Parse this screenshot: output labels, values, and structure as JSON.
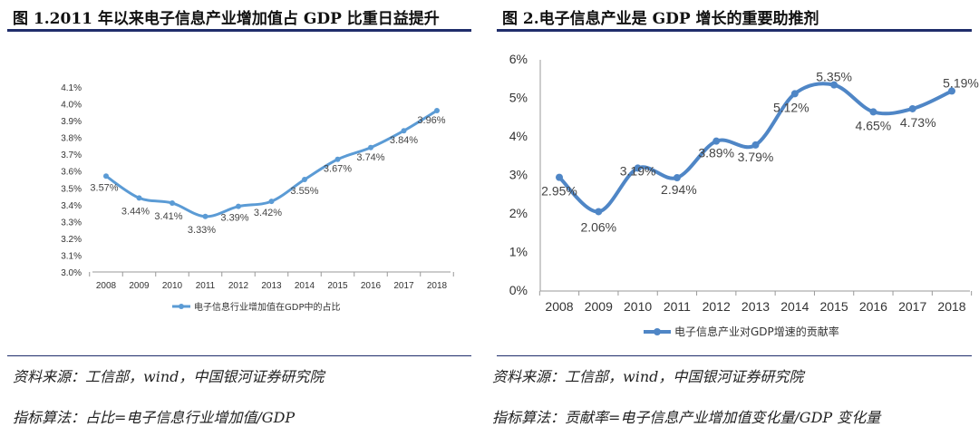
{
  "titles": {
    "left": "图 1.2011 年以来电子信息产业增加值占 GDP 比重日益提升",
    "right": "图 2.电子信息产业是 GDP 增长的重要助推剂"
  },
  "sources": {
    "left_source": "资料来源：工信部，wind，中国银河证券研究院",
    "left_formula": "指标算法：占比=电子信息行业增加值/GDP",
    "right_source": "资料来源：工信部，wind，中国银河证券研究院",
    "right_formula": "指标算法：贡献率=电子信息产业增加值变化量/GDP 变化量"
  },
  "chart_data": [
    {
      "type": "line",
      "categories": [
        "2008",
        "2009",
        "2010",
        "2011",
        "2012",
        "2013",
        "2014",
        "2015",
        "2016",
        "2017",
        "2018"
      ],
      "series": [
        {
          "name": "电子信息行业增加值在GDP中的占比",
          "values": [
            3.57,
            3.44,
            3.41,
            3.33,
            3.39,
            3.42,
            3.55,
            3.67,
            3.74,
            3.84,
            3.96
          ],
          "labels": [
            "3.57%",
            "3.44%",
            "3.41%",
            "3.33%",
            "3.39%",
            "3.42%",
            "3.55%",
            "3.67%",
            "3.74%",
            "3.84%",
            "3.96%"
          ]
        }
      ],
      "yticks": [
        "3.0%",
        "3.1%",
        "3.2%",
        "3.3%",
        "3.4%",
        "3.5%",
        "3.6%",
        "3.7%",
        "3.8%",
        "3.9%",
        "4.0%",
        "4.1%"
      ],
      "ylim": [
        3.0,
        4.1
      ],
      "legend": "bottom",
      "color": "#5b9bd5"
    },
    {
      "type": "line",
      "categories": [
        "2008",
        "2009",
        "2010",
        "2011",
        "2012",
        "2013",
        "2014",
        "2015",
        "2016",
        "2017",
        "2018"
      ],
      "series": [
        {
          "name": "电子信息产业对GDP增速的贡献率",
          "values": [
            2.95,
            2.06,
            3.19,
            2.94,
            3.89,
            3.79,
            5.12,
            5.35,
            4.65,
            4.73,
            5.19
          ],
          "labels": [
            "2.95%",
            "2.06%",
            "3.19%",
            "2.94%",
            "3.89%",
            "3.79%",
            "5.12%",
            "5.35%",
            "4.65%",
            "4.73%",
            "5.19%"
          ]
        }
      ],
      "yticks": [
        "0%",
        "1%",
        "2%",
        "3%",
        "4%",
        "5%",
        "6%"
      ],
      "ylim": [
        0,
        6
      ],
      "legend": "bottom",
      "color": "#4f86c6"
    }
  ]
}
